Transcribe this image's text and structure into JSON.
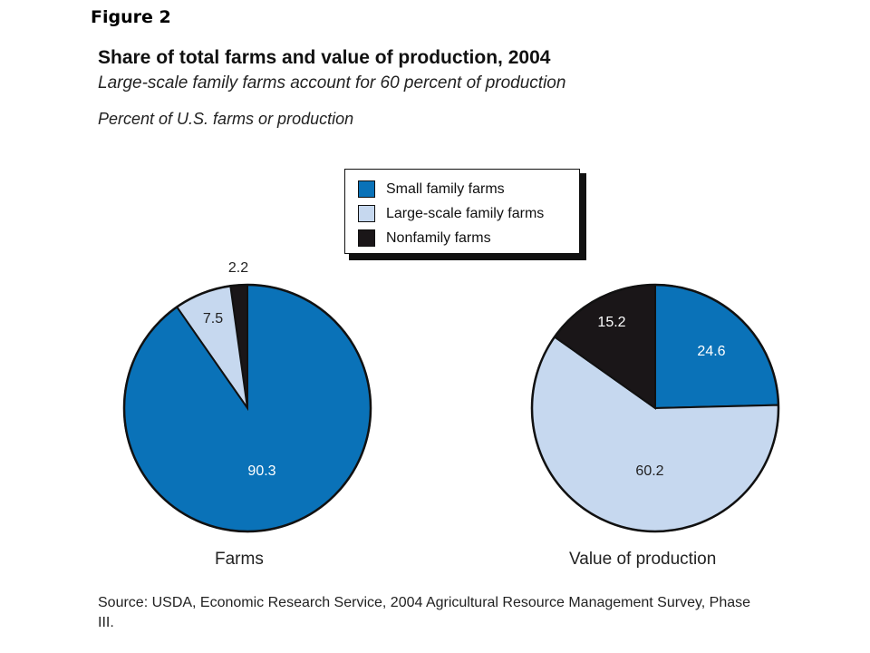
{
  "figure_label": "Figure 2",
  "chart_data": [
    {
      "type": "pie",
      "title": "Share of total farms and value of production, 2004",
      "subtitle": "Large-scale family farms account for 60 percent of production",
      "units_label": "Percent of U.S. farms or production",
      "pie_title": "Farms",
      "categories": [
        "Small family farms",
        "Large-scale family farms",
        "Nonfamily farms"
      ],
      "values": [
        90.3,
        7.5,
        2.2
      ],
      "labels": [
        "90.3",
        "7.5",
        "2.2"
      ],
      "colors": [
        "#0a72b8",
        "#c6d8ef",
        "#1a1618"
      ],
      "legend_position": "top-center"
    },
    {
      "type": "pie",
      "pie_title": "Value of production",
      "categories": [
        "Small family farms",
        "Large-scale family farms",
        "Nonfamily farms"
      ],
      "values": [
        24.6,
        60.2,
        15.2
      ],
      "labels": [
        "24.6",
        "60.2",
        "15.2"
      ],
      "colors": [
        "#0a72b8",
        "#c6d8ef",
        "#1a1618"
      ]
    }
  ],
  "legend": [
    {
      "label": "Small family farms",
      "color": "#0a72b8"
    },
    {
      "label": "Large-scale family farms",
      "color": "#c6d8ef"
    },
    {
      "label": "Nonfamily farms",
      "color": "#1a1618"
    }
  ],
  "source": "Source: USDA, Economic Research Service, 2004 Agricultural Resource Management Survey, Phase III."
}
